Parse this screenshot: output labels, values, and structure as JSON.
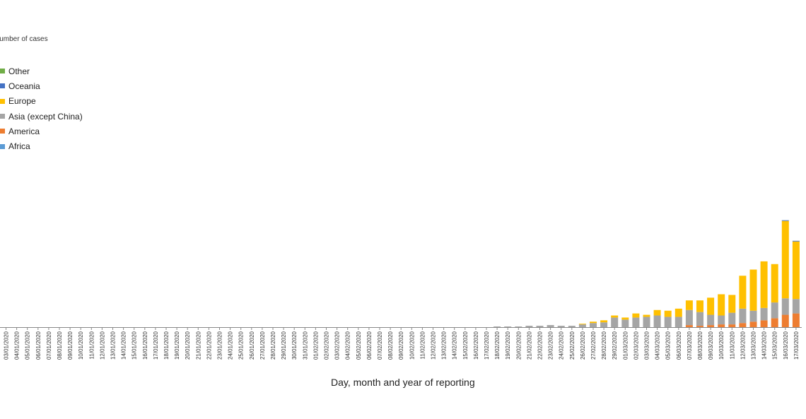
{
  "chart_data": {
    "type": "bar",
    "stacked": true,
    "ylabel": "Number of cases",
    "xlabel": "Day, month and year of reporting",
    "legend_position": "top-left",
    "grid": false,
    "categories": [
      "03/01/2020",
      "04/01/2020",
      "05/01/2020",
      "06/01/2020",
      "07/01/2020",
      "08/01/2020",
      "09/01/2020",
      "10/01/2020",
      "11/01/2020",
      "12/01/2020",
      "13/01/2020",
      "14/01/2020",
      "15/01/2020",
      "16/01/2020",
      "17/01/2020",
      "18/01/2020",
      "19/01/2020",
      "20/01/2020",
      "21/01/2020",
      "22/01/2020",
      "23/01/2020",
      "24/01/2020",
      "25/01/2020",
      "26/01/2020",
      "27/01/2020",
      "28/01/2020",
      "29/01/2020",
      "30/01/2020",
      "31/01/2020",
      "01/02/2020",
      "02/02/2020",
      "03/02/2020",
      "04/02/2020",
      "05/02/2020",
      "06/02/2020",
      "07/02/2020",
      "08/02/2020",
      "09/02/2020",
      "10/02/2020",
      "11/02/2020",
      "12/02/2020",
      "13/02/2020",
      "14/02/2020",
      "15/02/2020",
      "16/02/2020",
      "17/02/2020",
      "18/02/2020",
      "19/02/2020",
      "20/02/2020",
      "21/02/2020",
      "22/02/2020",
      "23/02/2020",
      "24/02/2020",
      "25/02/2020",
      "26/02/2020",
      "27/02/2020",
      "28/02/2020",
      "29/02/2020",
      "01/03/2020",
      "02/03/2020",
      "03/03/2020",
      "04/03/2020",
      "05/03/2020",
      "06/03/2020",
      "07/03/2020",
      "08/03/2020",
      "09/03/2020",
      "10/03/2020",
      "11/03/2020",
      "12/03/2020",
      "13/03/2020",
      "14/03/2020",
      "15/03/2020",
      "16/03/2020",
      "17/03/2020"
    ],
    "series": [
      {
        "name": "Africa",
        "color": "#5b9bd5",
        "values": [
          0,
          0,
          0,
          0,
          0,
          0,
          0,
          0,
          0,
          0,
          0,
          0,
          0,
          0,
          0,
          0,
          0,
          0,
          0,
          0,
          0,
          0,
          0,
          0,
          0,
          0,
          0,
          0,
          0,
          0,
          0,
          0,
          0,
          0,
          0,
          0,
          0,
          0,
          0,
          0,
          0,
          0,
          0,
          0,
          0,
          0,
          0,
          0,
          0,
          0,
          0,
          0,
          0,
          0,
          0,
          0,
          0,
          0,
          0,
          0,
          0,
          0,
          0,
          0,
          0,
          0,
          0,
          0,
          0,
          0,
          0,
          0,
          0,
          0,
          0
        ]
      },
      {
        "name": "America",
        "color": "#ed7d31",
        "values": [
          0,
          0,
          0,
          0,
          0,
          0,
          0,
          0,
          0,
          0,
          0,
          0,
          0,
          0,
          0,
          0,
          0,
          0,
          0,
          0,
          0,
          0,
          0,
          0,
          0,
          0,
          0,
          0,
          0,
          0,
          0,
          0,
          0,
          0,
          0,
          0,
          0,
          0,
          0,
          0,
          0,
          0,
          0,
          0,
          0,
          0,
          0,
          0,
          0,
          0,
          0,
          0,
          0,
          0,
          0,
          0,
          0,
          0,
          0,
          0,
          0,
          0,
          0,
          0,
          3,
          2,
          3,
          4,
          4,
          6,
          8,
          10,
          13,
          18,
          20
        ]
      },
      {
        "name": "Asia (except China)",
        "color": "#a5a5a5",
        "values": [
          0,
          0,
          0,
          0,
          0,
          0,
          0,
          0,
          0,
          0,
          0,
          0,
          0,
          0,
          0,
          0,
          0,
          0,
          0,
          0,
          0,
          0,
          0,
          0,
          0,
          0,
          0,
          0,
          0,
          0,
          0,
          0,
          0,
          0,
          0,
          0,
          0,
          0,
          0,
          0,
          0,
          0,
          0,
          0,
          0,
          0,
          1,
          1,
          1,
          2,
          2,
          3,
          2,
          2,
          4,
          6,
          7,
          14,
          11,
          14,
          15,
          17,
          15,
          15,
          22,
          20,
          15,
          13,
          17,
          21,
          16,
          18,
          23,
          24,
          21
        ]
      },
      {
        "name": "Europe",
        "color": "#ffc000",
        "values": [
          0,
          0,
          0,
          0,
          0,
          0,
          0,
          0,
          0,
          0,
          0,
          0,
          0,
          0,
          0,
          0,
          0,
          0,
          0,
          0,
          0,
          0,
          0,
          0,
          0,
          0,
          0,
          0,
          0,
          0,
          0,
          0,
          0,
          0,
          0,
          0,
          0,
          0,
          0,
          0,
          0,
          0,
          0,
          0,
          0,
          0,
          0,
          0,
          0,
          0,
          0,
          0,
          0,
          0,
          1,
          2,
          3,
          3,
          3,
          6,
          3,
          8,
          9,
          12,
          14,
          17,
          25,
          31,
          26,
          48,
          60,
          68,
          56,
          113,
          84
        ]
      },
      {
        "name": "Oceania",
        "color": "#4472c4",
        "values": [
          0,
          0,
          0,
          0,
          0,
          0,
          0,
          0,
          0,
          0,
          0,
          0,
          0,
          0,
          0,
          0,
          0,
          0,
          0,
          0,
          0,
          0,
          0,
          0,
          0,
          0,
          0,
          0,
          0,
          0,
          0,
          0,
          0,
          0,
          0,
          0,
          0,
          0,
          0,
          0,
          0,
          0,
          0,
          0,
          0,
          0,
          0,
          0,
          0,
          0,
          0,
          0,
          0,
          0,
          0,
          0,
          0,
          0,
          0,
          0,
          0,
          0,
          0,
          0,
          0,
          0,
          0,
          0,
          0,
          0,
          0,
          0,
          0,
          1,
          1
        ]
      },
      {
        "name": "Other",
        "color": "#70ad47",
        "values": [
          0,
          0,
          0,
          0,
          0,
          0,
          0,
          0,
          0,
          0,
          0,
          0,
          0,
          0,
          0,
          0,
          0,
          0,
          0,
          0,
          0,
          0,
          0,
          0,
          0,
          0,
          0,
          0,
          0,
          0,
          0,
          0,
          0,
          0,
          0,
          0,
          0,
          0,
          0,
          0,
          0,
          0,
          0,
          0,
          0,
          0,
          0,
          0,
          0,
          0,
          0,
          0,
          0,
          0,
          0,
          0,
          0,
          0,
          0,
          0,
          0,
          0,
          0,
          0,
          0,
          0,
          0,
          0,
          0,
          0,
          0,
          0,
          0,
          0,
          0
        ]
      }
    ]
  },
  "legend": {
    "order": [
      "Other",
      "Oceania",
      "Europe",
      "Asia (except China)",
      "America",
      "Africa"
    ]
  }
}
